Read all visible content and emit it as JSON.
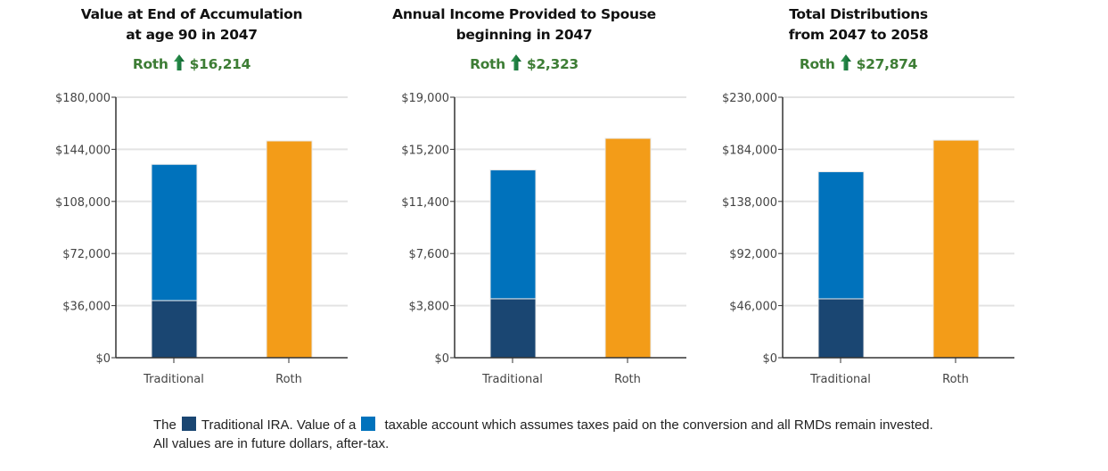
{
  "colors": {
    "traditional_ira": "#1a4672",
    "taxable": "#0072bc",
    "roth": "#f39c18",
    "delta": "#3d7d35"
  },
  "chart_data": [
    {
      "type": "bar",
      "stacked": true,
      "title": [
        "Value at End of Accumulation",
        "at age 90 in 2047"
      ],
      "delta_label": "Roth",
      "delta_value": "$16,214",
      "categories": [
        "Traditional",
        "Roth"
      ],
      "ylim": [
        0,
        180000
      ],
      "yticks": [
        "$0",
        "$36,000",
        "$72,000",
        "$108,000",
        "$144,000",
        "$180,000"
      ],
      "series": [
        {
          "name": "Traditional IRA",
          "values": [
            39500,
            0
          ]
        },
        {
          "name": "Taxable account",
          "values": [
            94100,
            0
          ]
        },
        {
          "name": "Roth",
          "values": [
            0,
            149800
          ]
        }
      ]
    },
    {
      "type": "bar",
      "stacked": true,
      "title": [
        "Annual Income Provided to Spouse",
        "beginning in 2047"
      ],
      "delta_label": "Roth",
      "delta_value": "$2,323",
      "categories": [
        "Traditional",
        "Roth"
      ],
      "ylim": [
        0,
        19000
      ],
      "yticks": [
        "$0",
        "$3,800",
        "$7,600",
        "$11,400",
        "$15,200",
        "$19,000"
      ],
      "series": [
        {
          "name": "Traditional IRA",
          "values": [
            4300,
            0
          ]
        },
        {
          "name": "Taxable account",
          "values": [
            9400,
            0
          ]
        },
        {
          "name": "Roth",
          "values": [
            0,
            16000
          ]
        }
      ]
    },
    {
      "type": "bar",
      "stacked": true,
      "title": [
        "Total Distributions",
        "from 2047 to 2058"
      ],
      "delta_label": "Roth",
      "delta_value": "$27,874",
      "categories": [
        "Traditional",
        "Roth"
      ],
      "ylim": [
        0,
        230000
      ],
      "yticks": [
        "$0",
        "$46,000",
        "$92,000",
        "$138,000",
        "$184,000",
        "$230,000"
      ],
      "series": [
        {
          "name": "Traditional IRA",
          "values": [
            52000,
            0
          ]
        },
        {
          "name": "Taxable account",
          "values": [
            112200,
            0
          ]
        },
        {
          "name": "Roth",
          "values": [
            0,
            192100
          ]
        }
      ]
    }
  ],
  "footer": {
    "line1_a": "The",
    "line1_b": "Traditional IRA. Value of a",
    "line1_c": "taxable account which assumes taxes paid on the conversion and all RMDs remain invested.",
    "line2": "All values are in future dollars, after-tax."
  }
}
